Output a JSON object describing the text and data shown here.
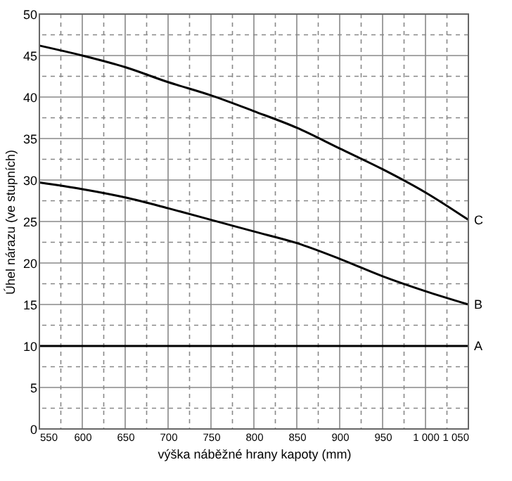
{
  "chart_data": {
    "type": "line",
    "xlabel": "výška náběžné hrany kapoty (mm)",
    "ylabel": "Úhel nárazu (ve stupních)",
    "x": [
      550,
      600,
      650,
      700,
      750,
      800,
      850,
      900,
      950,
      1000,
      1050
    ],
    "series": [
      {
        "name": "C",
        "color": "#000000",
        "values": [
          46.2,
          45.0,
          43.6,
          41.8,
          40.2,
          38.3,
          36.3,
          33.8,
          31.3,
          28.5,
          25.2
        ]
      },
      {
        "name": "B",
        "color": "#000000",
        "values": [
          29.7,
          28.9,
          27.9,
          26.6,
          25.2,
          23.8,
          22.4,
          20.5,
          18.4,
          16.6,
          15.0
        ]
      },
      {
        "name": "A",
        "color": "#000000",
        "values": [
          10,
          10,
          10,
          10,
          10,
          10,
          10,
          10,
          10,
          10,
          10
        ]
      }
    ],
    "xlim": [
      550,
      1050
    ],
    "ylim": [
      0,
      50
    ],
    "xticks": [
      550,
      {
        "value": 575,
        "label": null
      },
      600,
      {
        "value": 625,
        "label": null
      },
      650,
      {
        "value": 675,
        "label": null
      },
      700,
      {
        "value": 725,
        "label": null
      },
      750,
      {
        "value": 775,
        "label": null
      },
      800,
      {
        "value": 825,
        "label": null
      },
      850,
      {
        "value": 875,
        "label": null
      },
      900,
      {
        "value": 925,
        "label": null
      },
      950,
      {
        "value": 975,
        "label": null
      },
      {
        "value": 1000,
        "label": "1 000"
      },
      {
        "value": 1025,
        "label": null
      },
      {
        "value": 1050,
        "label": "1 050"
      }
    ],
    "yticks": [
      0,
      {
        "value": 2.5,
        "label": null
      },
      5,
      {
        "value": 7.5,
        "label": null
      },
      10,
      {
        "value": 12.5,
        "label": null
      },
      15,
      {
        "value": 17.5,
        "label": null
      },
      20,
      {
        "value": 22.5,
        "label": null
      },
      25,
      {
        "value": 27.5,
        "label": null
      },
      30,
      {
        "value": 32.5,
        "label": null
      },
      35,
      {
        "value": 37.5,
        "label": null
      },
      40,
      {
        "value": 42.5,
        "label": null
      },
      45,
      {
        "value": 47.5,
        "label": null
      },
      50
    ],
    "grid": true,
    "marker": "none",
    "line_style": "solid"
  }
}
